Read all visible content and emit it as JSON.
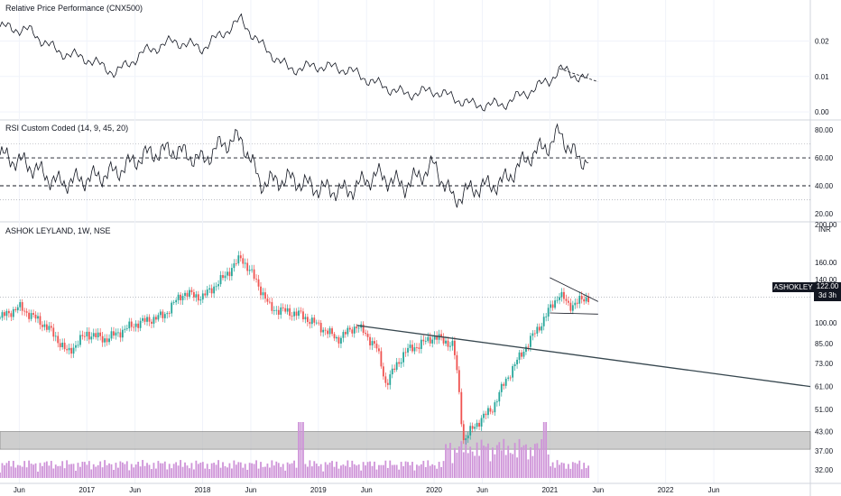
{
  "panes": {
    "rpp_title": "Relative Price Performance (CNX500)",
    "rsi_title": "RSI Custom Coded (14, 9, 45, 20)",
    "price_title": "ASHOK LEYLAND, 1W, NSE"
  },
  "price_tag": {
    "symbol": "ASHOKLEY",
    "value": "122.00",
    "countdown": "3d 3h"
  },
  "colors": {
    "up": "#26a69a",
    "down": "#ef5350",
    "line": "#131722",
    "volume": "#ce93d8",
    "zone": "#bdbdbd",
    "trendline": "#37474f"
  },
  "chart_data": [
    {
      "type": "line",
      "title": "Relative Price Performance (CNX500)",
      "y_ticks": [
        "0.02",
        "0.01",
        "0.00"
      ],
      "ylim": [
        -0.001,
        0.027
      ],
      "x_span": [
        "2016-04",
        "2023-04"
      ],
      "series": [
        {
          "x": [
            "2016-04",
            "2016-07",
            "2016-10",
            "2017-01",
            "2017-04",
            "2017-07",
            "2017-10",
            "2018-01",
            "2018-03",
            "2018-05",
            "2018-07",
            "2018-10",
            "2019-01",
            "2019-04",
            "2019-07",
            "2019-10",
            "2020-01",
            "2020-03",
            "2020-05",
            "2020-08",
            "2020-11",
            "2021-01",
            "2021-02",
            "2021-04",
            "2021-05"
          ],
          "values": [
            0.024,
            0.023,
            0.017,
            0.015,
            0.011,
            0.017,
            0.02,
            0.018,
            0.022,
            0.026,
            0.019,
            0.012,
            0.013,
            0.012,
            0.008,
            0.005,
            0.006,
            0.004,
            0.002,
            0.002,
            0.006,
            0.009,
            0.012,
            0.01,
            0.009
          ]
        }
      ]
    },
    {
      "type": "line",
      "title": "RSI Custom Coded (14, 9, 45, 20)",
      "y_ticks": [
        "80.00",
        "60.00",
        "40.00",
        "20.00"
      ],
      "ylim": [
        18,
        84
      ],
      "x_span": [
        "2016-04",
        "2023-04"
      ],
      "series": [
        {
          "x": [
            "2016-04",
            "2016-07",
            "2016-10",
            "2017-01",
            "2017-04",
            "2017-07",
            "2017-10",
            "2018-01",
            "2018-03",
            "2018-05",
            "2018-07",
            "2018-10",
            "2019-01",
            "2019-04",
            "2019-07",
            "2019-10",
            "2020-01",
            "2020-03",
            "2020-05",
            "2020-08",
            "2020-11",
            "2021-01",
            "2021-02",
            "2021-04",
            "2021-05"
          ],
          "values": [
            62,
            55,
            42,
            45,
            50,
            62,
            66,
            58,
            70,
            74,
            42,
            45,
            38,
            36,
            48,
            40,
            55,
            30,
            38,
            42,
            62,
            70,
            78,
            58,
            60
          ]
        }
      ]
    },
    {
      "type": "bar",
      "title": "ASHOK LEYLAND, 1W, NSE",
      "unit": "INR",
      "scale": "log",
      "y_ticks": [
        "200.00",
        "160.00",
        "140.00",
        "122.00",
        "100.00",
        "85.00",
        "73.00",
        "61.00",
        "51.00",
        "43.00",
        "37.00",
        "32.00"
      ],
      "ylim": [
        30,
        210
      ],
      "x_ticks": [
        "Jun",
        "2017",
        "Jun",
        "2018",
        "Jun",
        "2019",
        "Jun",
        "2020",
        "Jun",
        "2021",
        "Jun",
        "2022",
        "Jun"
      ],
      "x_tick_dates": [
        "2016-06",
        "2017-01",
        "2017-06",
        "2018-01",
        "2018-06",
        "2019-01",
        "2019-06",
        "2020-01",
        "2020-06",
        "2021-01",
        "2021-06",
        "2022-01",
        "2022-06"
      ],
      "x_span": [
        "2016-04",
        "2023-04"
      ],
      "last_date": "2021-05",
      "last_close": 122,
      "path_dates": [
        "2016-04",
        "2016-06",
        "2016-09",
        "2016-11",
        "2017-01",
        "2017-03",
        "2017-06",
        "2017-09",
        "2017-11",
        "2018-01",
        "2018-03",
        "2018-05",
        "2018-06",
        "2018-08",
        "2018-11",
        "2019-01",
        "2019-03",
        "2019-05",
        "2019-07",
        "2019-08",
        "2019-10",
        "2019-12",
        "2020-01",
        "2020-03",
        "2020-04",
        "2020-06",
        "2020-07",
        "2020-10",
        "2020-12",
        "2021-02",
        "2021-03",
        "2021-05"
      ],
      "path_closes": [
        104,
        113,
        96,
        79,
        92,
        88,
        99,
        106,
        126,
        122,
        140,
        166,
        148,
        112,
        107,
        98,
        88,
        98,
        83,
        62,
        80,
        86,
        90,
        84,
        40,
        48,
        51,
        78,
        98,
        125,
        114,
        122
      ],
      "support_zone": [
        37.5,
        43
      ],
      "trendline": {
        "from": [
          "2019-05",
          98
        ],
        "to": [
          "2023-04",
          61
        ]
      },
      "triangle": {
        "upper": [
          [
            "2021-01",
            142
          ],
          [
            "2021-06",
            118
          ]
        ],
        "lower": [
          [
            "2021-01",
            108
          ],
          [
            "2021-06",
            107
          ]
        ]
      }
    }
  ]
}
